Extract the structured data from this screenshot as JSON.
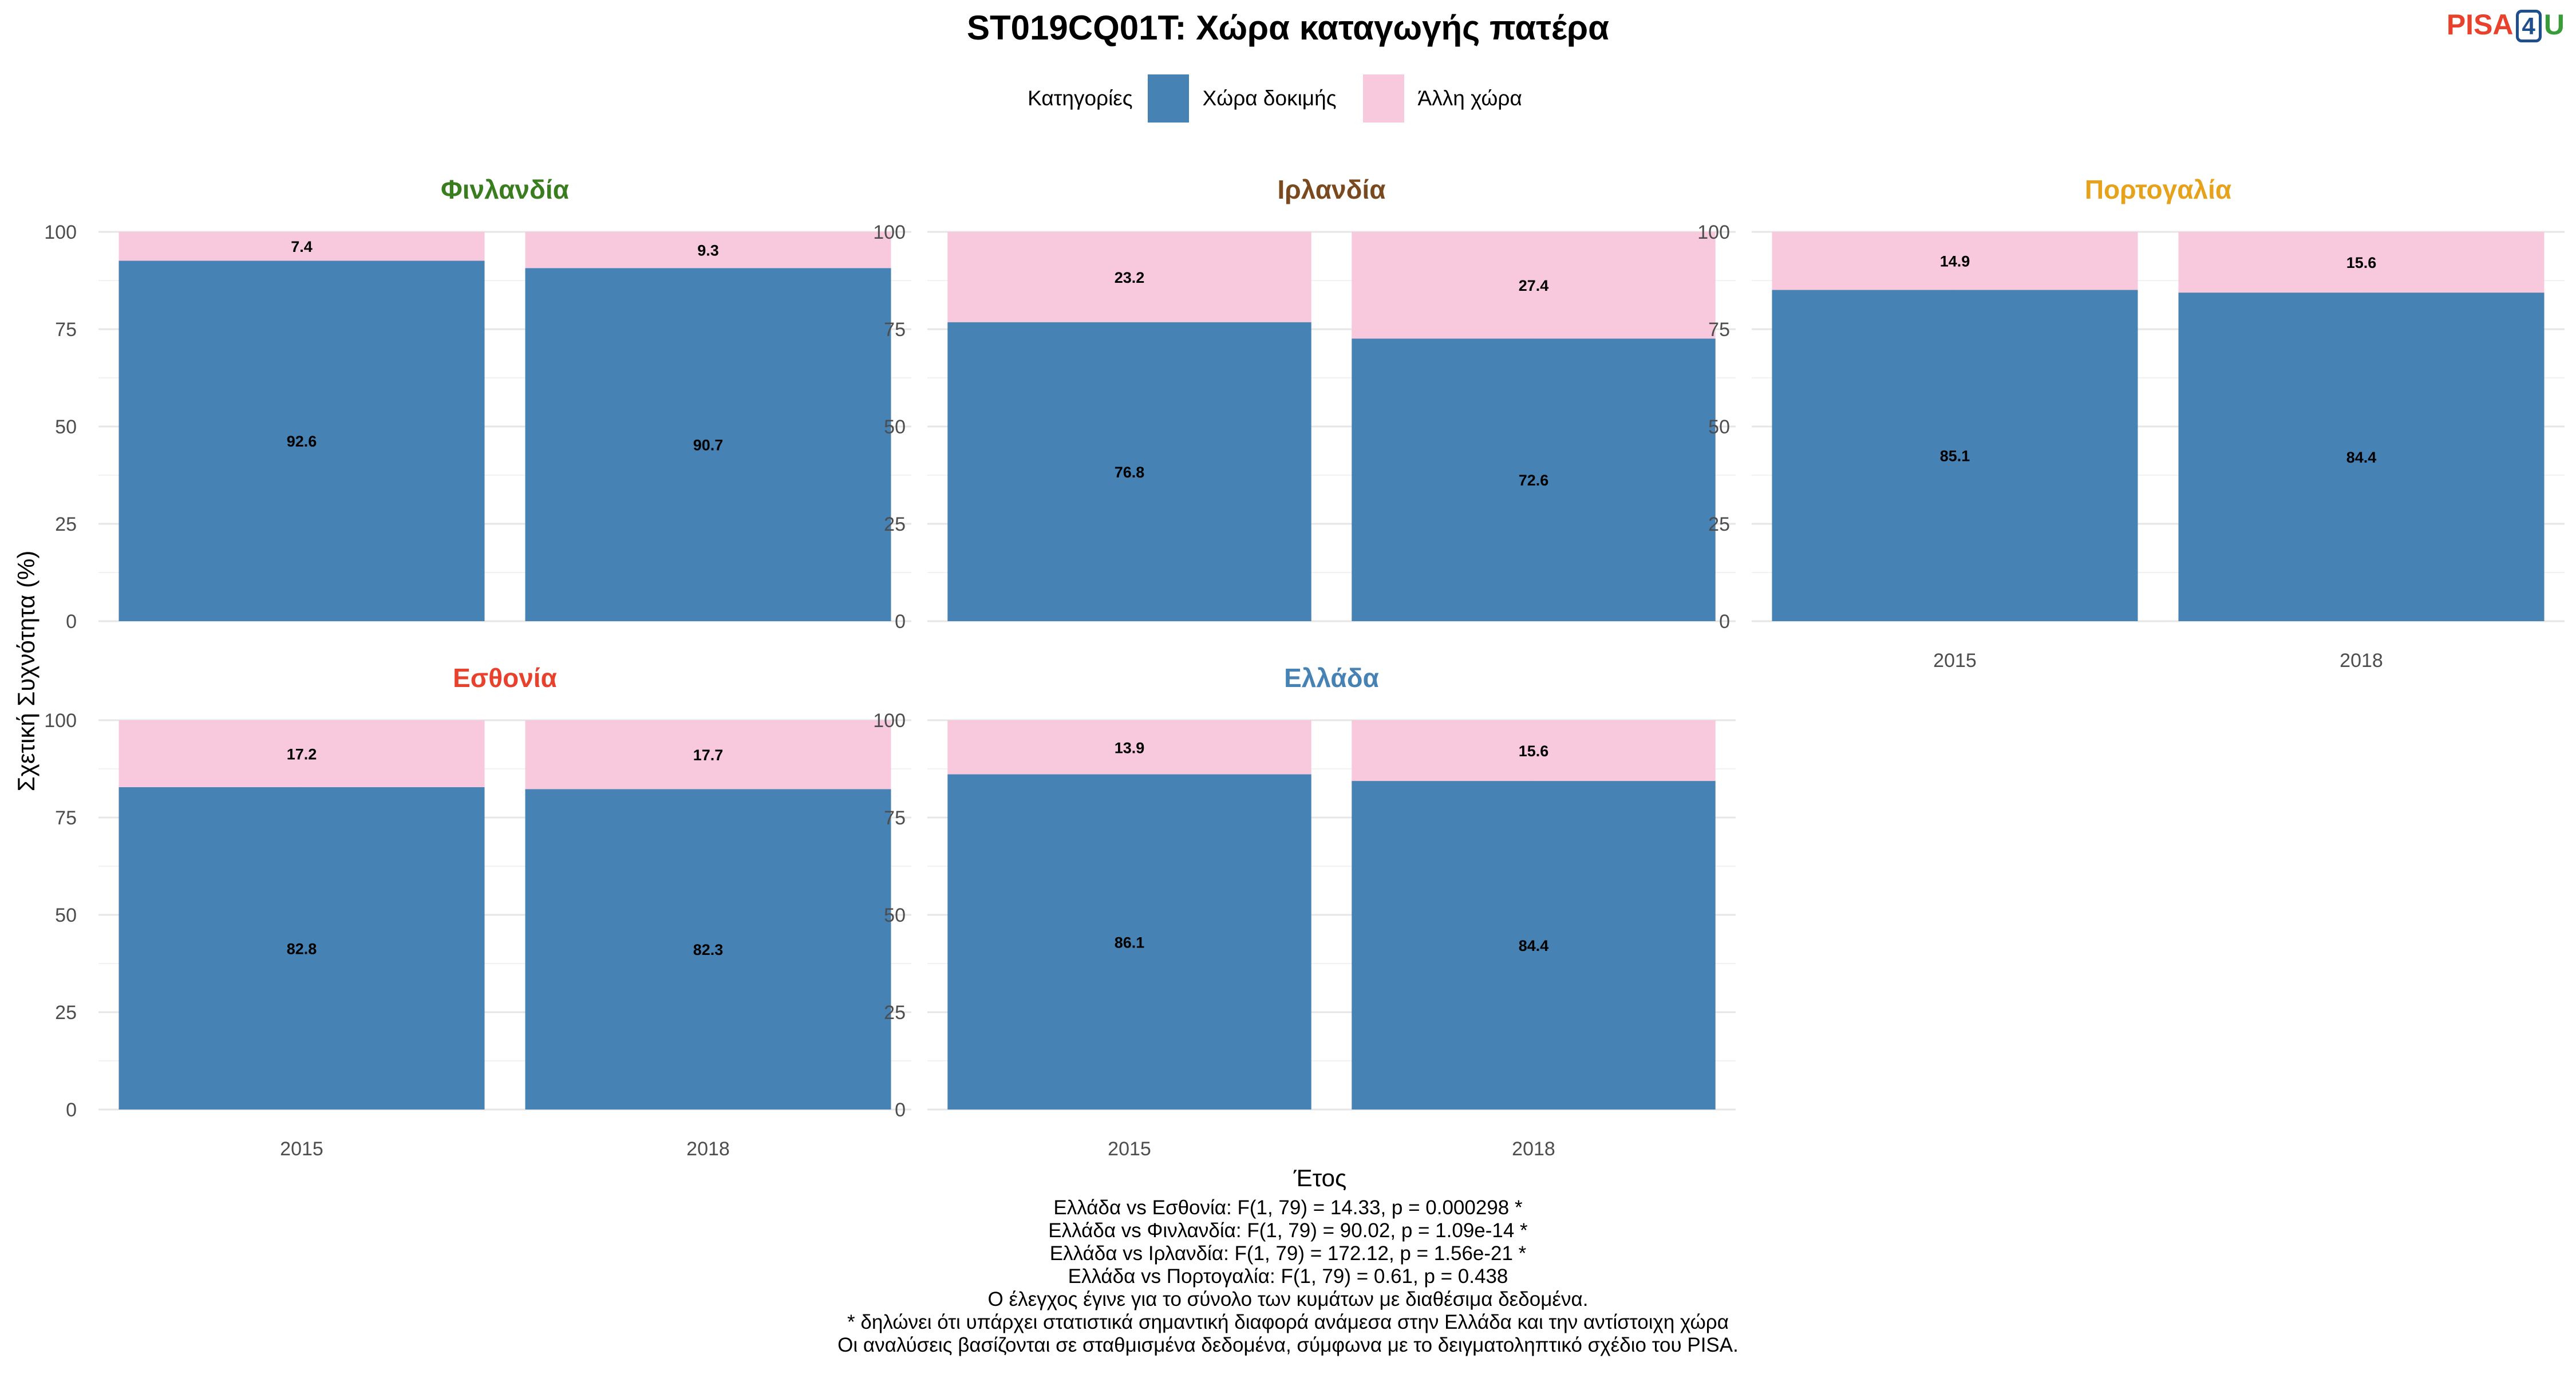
{
  "chart_data": {
    "type": "bar",
    "stacked": true,
    "title": "ST019CQ01T: Χώρα καταγωγής πατέρα",
    "xlabel": "Έτος",
    "ylabel": "Σχετική Συχνότητα (%)",
    "ylim": [
      0,
      100
    ],
    "yticks": [
      "0",
      "25",
      "50",
      "75",
      "100"
    ],
    "legend": {
      "title": "Κατηγορίες",
      "position": "top",
      "items": [
        {
          "label": "Χώρα δοκιμής",
          "color": "#4682b4"
        },
        {
          "label": "Άλλη χώρα",
          "color": "#f8c8dc"
        }
      ]
    },
    "categories": [
      "2015",
      "2018"
    ],
    "panels": [
      {
        "name": "Φινλανδία",
        "color": "#3a7d1e",
        "series": [
          {
            "name": "Χώρα δοκιμής",
            "values": [
              92.6,
              90.7
            ]
          },
          {
            "name": "Άλλη χώρα",
            "values": [
              7.4,
              9.3
            ]
          }
        ]
      },
      {
        "name": "Ιρλανδία",
        "color": "#7a4a1e",
        "series": [
          {
            "name": "Χώρα δοκιμής",
            "values": [
              76.8,
              72.6
            ]
          },
          {
            "name": "Άλλη χώρα",
            "values": [
              23.2,
              27.4
            ]
          }
        ]
      },
      {
        "name": "Πορτογαλία",
        "color": "#e5a21a",
        "series": [
          {
            "name": "Χώρα δοκιμής",
            "values": [
              85.1,
              84.4
            ]
          },
          {
            "name": "Άλλη χώρα",
            "values": [
              14.9,
              15.6
            ]
          }
        ]
      },
      {
        "name": "Εσθονία",
        "color": "#e8412c",
        "series": [
          {
            "name": "Χώρα δοκιμής",
            "values": [
              82.8,
              82.3
            ]
          },
          {
            "name": "Άλλη χώρα",
            "values": [
              17.2,
              17.7
            ]
          }
        ]
      },
      {
        "name": "Ελλάδα",
        "color": "#4682b4",
        "series": [
          {
            "name": "Χώρα δοκιμής",
            "values": [
              86.1,
              84.4
            ]
          },
          {
            "name": "Άλλη χώρα",
            "values": [
              13.9,
              15.6
            ]
          }
        ]
      }
    ],
    "grid": true
  },
  "logo": {
    "left": "PISA",
    "mid": "4",
    "right": "U"
  },
  "notes": [
    "Ελλάδα vs Εσθονία: F(1, 79) = 14.33, p = 0.000298 *",
    "Ελλάδα vs Φινλανδία: F(1, 79) = 90.02, p = 1.09e-14 *",
    "Ελλάδα vs Ιρλανδία: F(1, 79) = 172.12, p = 1.56e-21 *",
    "Ελλάδα vs Πορτογαλία: F(1, 79) = 0.61, p = 0.438",
    "Ο έλεγχος έγινε για το σύνολο των κυμάτων με διαθέσιμα δεδομένα.",
    "* δηλώνει ότι υπάρχει στατιστικά σημαντική διαφορά ανάμεσα στην Ελλάδα και την αντίστοιχη χώρα",
    "Οι αναλύσεις βασίζονται σε σταθμισμένα δεδομένα, σύμφωνα με το δειγματοληπτικό σχέδιο του PISA."
  ]
}
